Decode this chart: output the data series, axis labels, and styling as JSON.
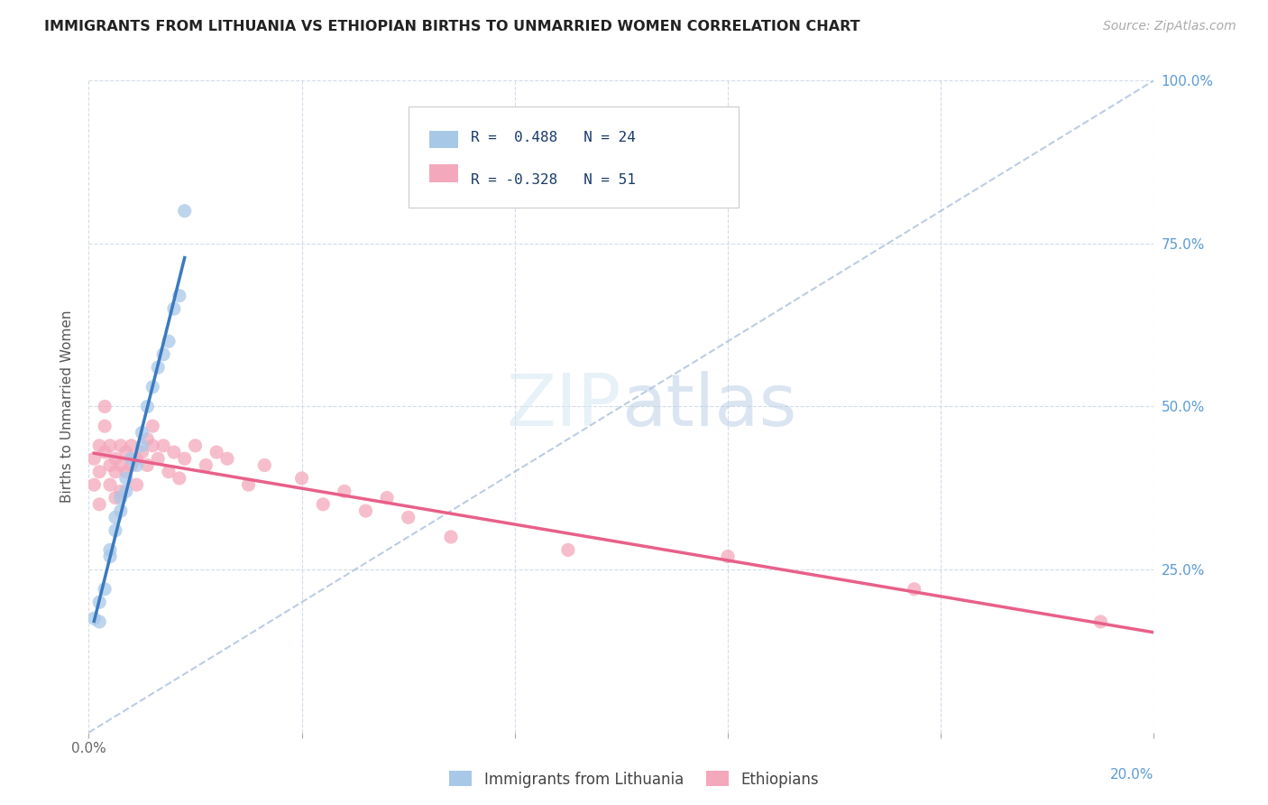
{
  "title": "IMMIGRANTS FROM LITHUANIA VS ETHIOPIAN BIRTHS TO UNMARRIED WOMEN CORRELATION CHART",
  "source": "Source: ZipAtlas.com",
  "ylabel": "Births to Unmarried Women",
  "xlim": [
    0.0,
    0.2
  ],
  "ylim": [
    0.0,
    1.0
  ],
  "legend_line1": "R =  0.488   N = 24",
  "legend_line2": "R = -0.328   N = 51",
  "legend1_label": "Immigrants from Lithuania",
  "legend2_label": "Ethiopians",
  "blue_color": "#a8c8e8",
  "pink_color": "#f4a8bc",
  "trend_blue": "#3a7abf",
  "trend_pink": "#e8608a",
  "ref_line_color": "#a0b8d8",
  "grid_color": "#c8d4e4",
  "lithuania_x": [
    0.001,
    0.002,
    0.002,
    0.003,
    0.004,
    0.004,
    0.005,
    0.005,
    0.006,
    0.006,
    0.007,
    0.007,
    0.008,
    0.009,
    0.01,
    0.01,
    0.011,
    0.012,
    0.013,
    0.014,
    0.015,
    0.016,
    0.017,
    0.018
  ],
  "lithuania_y": [
    0.175,
    0.2,
    0.17,
    0.22,
    0.28,
    0.27,
    0.33,
    0.31,
    0.36,
    0.34,
    0.39,
    0.37,
    0.42,
    0.41,
    0.46,
    0.44,
    0.5,
    0.53,
    0.56,
    0.58,
    0.6,
    0.65,
    0.67,
    0.8
  ],
  "ethiopian_x": [
    0.001,
    0.001,
    0.002,
    0.002,
    0.002,
    0.003,
    0.003,
    0.003,
    0.004,
    0.004,
    0.004,
    0.005,
    0.005,
    0.005,
    0.006,
    0.006,
    0.006,
    0.007,
    0.007,
    0.008,
    0.008,
    0.009,
    0.009,
    0.01,
    0.011,
    0.011,
    0.012,
    0.012,
    0.013,
    0.014,
    0.015,
    0.016,
    0.017,
    0.018,
    0.02,
    0.022,
    0.024,
    0.026,
    0.03,
    0.033,
    0.04,
    0.044,
    0.048,
    0.052,
    0.056,
    0.06,
    0.068,
    0.09,
    0.12,
    0.155,
    0.19
  ],
  "ethiopian_y": [
    0.42,
    0.38,
    0.44,
    0.4,
    0.35,
    0.47,
    0.5,
    0.43,
    0.41,
    0.38,
    0.44,
    0.42,
    0.4,
    0.36,
    0.44,
    0.41,
    0.37,
    0.43,
    0.4,
    0.44,
    0.41,
    0.42,
    0.38,
    0.43,
    0.45,
    0.41,
    0.44,
    0.47,
    0.42,
    0.44,
    0.4,
    0.43,
    0.39,
    0.42,
    0.44,
    0.41,
    0.43,
    0.42,
    0.38,
    0.41,
    0.39,
    0.35,
    0.37,
    0.34,
    0.36,
    0.33,
    0.3,
    0.28,
    0.27,
    0.22,
    0.17
  ]
}
